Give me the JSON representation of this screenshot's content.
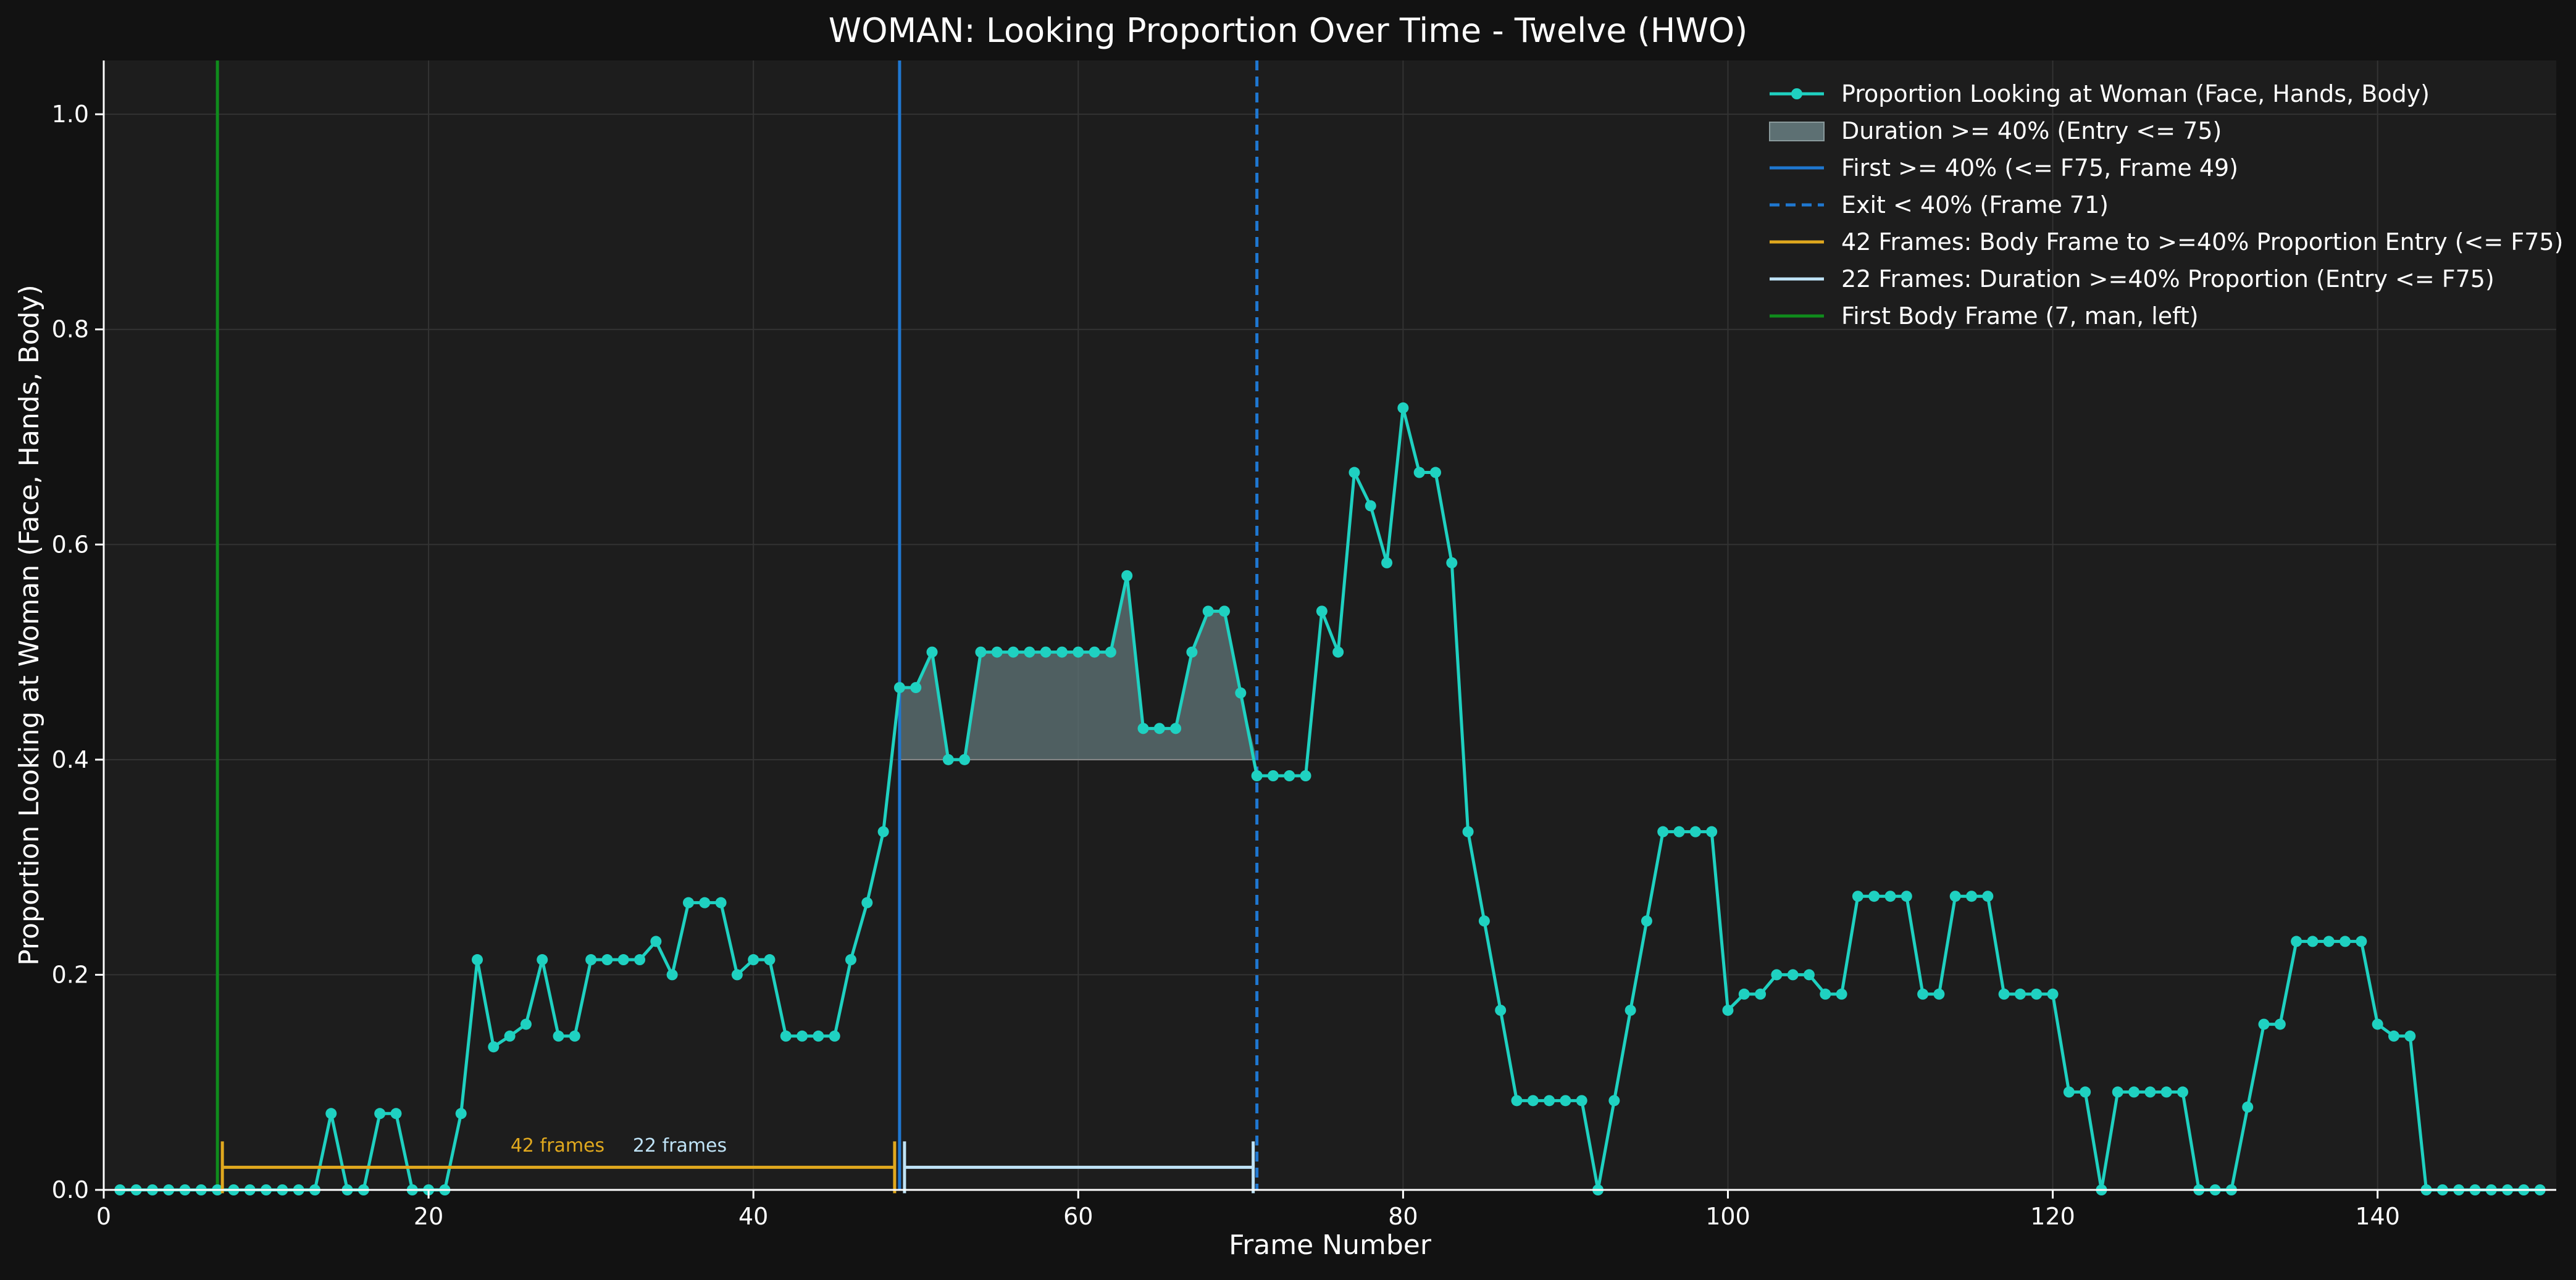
{
  "chart_data": {
    "type": "line",
    "title": "WOMAN: Looking Proportion Over Time - Twelve (HWO)",
    "xlabel": "Frame Number",
    "ylabel": "Proportion Looking at Woman (Face, Hands, Body)",
    "xlim": [
      0,
      151
    ],
    "ylim": [
      0,
      1.05
    ],
    "xticks": [
      0,
      20,
      40,
      60,
      80,
      100,
      120,
      140
    ],
    "yticks": [
      0.0,
      0.2,
      0.4,
      0.6,
      0.8,
      1.0
    ],
    "xtick_labels": [
      "0",
      "20",
      "40",
      "60",
      "80",
      "100",
      "120",
      "140"
    ],
    "ytick_labels": [
      "0.0",
      "0.2",
      "0.4",
      "0.6",
      "0.8",
      "1.0"
    ],
    "grid": true,
    "legend_position": "top-right",
    "colors": {
      "series": "#1fd1c1",
      "shade": "#5d7073",
      "first_line": "#1f77d0",
      "exit_line": "#1f77d0",
      "body_bracket": "#e0a81e",
      "duration_bracket": "#bfe3f7",
      "body_line": "#0f8c1c",
      "threshold": "#8a8a8a"
    },
    "series": [
      {
        "name": "Proportion Looking at Woman (Face, Hands, Body)",
        "x": [
          1,
          2,
          3,
          4,
          5,
          6,
          7,
          8,
          9,
          10,
          11,
          12,
          13,
          14,
          15,
          16,
          17,
          18,
          19,
          20,
          21,
          22,
          23,
          24,
          25,
          26,
          27,
          28,
          29,
          30,
          31,
          32,
          33,
          34,
          35,
          36,
          37,
          38,
          39,
          40,
          41,
          42,
          43,
          44,
          45,
          46,
          47,
          48,
          49,
          50,
          51,
          52,
          53,
          54,
          55,
          56,
          57,
          58,
          59,
          60,
          61,
          62,
          63,
          64,
          65,
          66,
          67,
          68,
          69,
          70,
          71,
          72,
          73,
          74,
          75,
          76,
          77,
          78,
          79,
          80,
          81,
          82,
          83,
          84,
          85,
          86,
          87,
          88,
          89,
          90,
          91,
          92,
          93,
          94,
          95,
          96,
          97,
          98,
          99,
          100,
          101,
          102,
          103,
          104,
          105,
          106,
          107,
          108,
          109,
          110,
          111,
          112,
          113,
          114,
          115,
          116,
          117,
          118,
          119,
          120,
          121,
          122,
          123,
          124,
          125,
          126,
          127,
          128,
          129,
          130,
          131,
          132,
          133,
          134,
          135,
          136,
          137,
          138,
          139,
          140,
          141,
          142,
          143,
          144,
          145,
          146,
          147,
          148,
          149,
          150
        ],
        "values": [
          0,
          0,
          0,
          0,
          0,
          0,
          0,
          0,
          0,
          0,
          0,
          0,
          0,
          0.071,
          0,
          0,
          0.071,
          0.071,
          0,
          0,
          0,
          0.071,
          0.214,
          0.133,
          0.143,
          0.154,
          0.214,
          0.143,
          0.143,
          0.214,
          0.214,
          0.214,
          0.214,
          0.231,
          0.2,
          0.267,
          0.267,
          0.267,
          0.2,
          0.214,
          0.214,
          0.143,
          0.143,
          0.143,
          0.143,
          0.214,
          0.267,
          0.333,
          0.467,
          0.467,
          0.5,
          0.4,
          0.4,
          0.5,
          0.5,
          0.5,
          0.5,
          0.5,
          0.5,
          0.5,
          0.5,
          0.5,
          0.571,
          0.429,
          0.429,
          0.429,
          0.5,
          0.538,
          0.538,
          0.462,
          0.385,
          0.385,
          0.385,
          0.385,
          0.538,
          0.5,
          0.667,
          0.636,
          0.583,
          0.727,
          0.667,
          0.667,
          0.583,
          0.333,
          0.25,
          0.167,
          0.083,
          0.083,
          0.083,
          0.083,
          0.083,
          0,
          0.083,
          0.167,
          0.25,
          0.333,
          0.333,
          0.333,
          0.333,
          0.167,
          0.182,
          0.182,
          0.2,
          0.2,
          0.2,
          0.182,
          0.182,
          0.273,
          0.273,
          0.273,
          0.273,
          0.182,
          0.182,
          0.273,
          0.273,
          0.273,
          0.182,
          0.182,
          0.182,
          0.182,
          0.091,
          0.091,
          0,
          0.091,
          0.091,
          0.091,
          0.091,
          0.091,
          0,
          0,
          0,
          0.077,
          0.154,
          0.154,
          0.231,
          0.231,
          0.231,
          0.231,
          0.231,
          0.154,
          0.143,
          0.143,
          0,
          0,
          0,
          0,
          0,
          0,
          0,
          0
        ]
      }
    ],
    "threshold": 0.4,
    "shaded_range": {
      "label": "Duration >= 40% (Entry <= 75)",
      "start": 49,
      "end": 71
    },
    "vlines": [
      {
        "id": "first",
        "x": 49,
        "label": "First >= 40% (<= F75, Frame 49)",
        "style": "solid"
      },
      {
        "id": "exit",
        "x": 71,
        "label": "Exit < 40% (Frame 71)",
        "style": "dashed"
      },
      {
        "id": "body",
        "x": 7,
        "label": "First Body Frame (7, man, left)",
        "style": "solid"
      }
    ],
    "brackets": [
      {
        "id": "body_to_entry",
        "start": 7,
        "end": 49,
        "y": 0.021,
        "label": "42 Frames: Body Frame to >=40% Proportion Entry (<= F75)",
        "annotation": "42 frames"
      },
      {
        "id": "duration",
        "start": 49,
        "end": 71,
        "y": 0.021,
        "label": "22 Frames: Duration >=40% Proportion (Entry <= F75)",
        "annotation": "22 frames"
      }
    ]
  }
}
